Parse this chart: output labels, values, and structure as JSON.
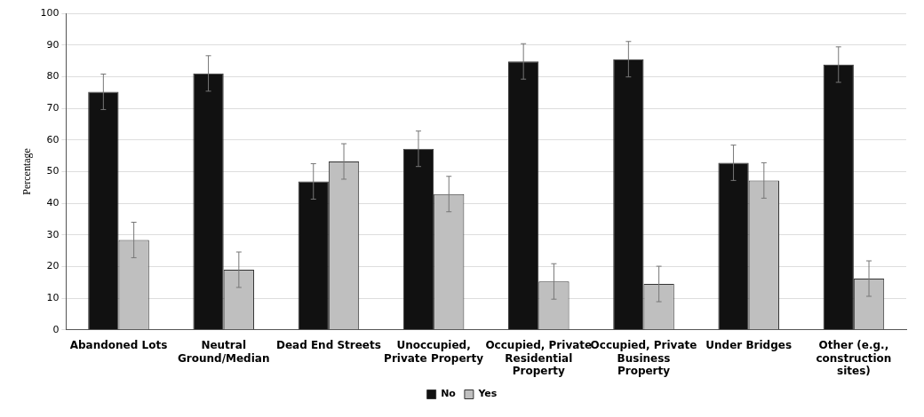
{
  "chart_data": {
    "type": "bar",
    "ylabel": "Percentage",
    "categories": [
      "Abandoned Lots",
      "Neutral Ground/Median",
      "Dead End Streets",
      "Unoccupied, Private Property",
      "Occupied, Private Residential Property",
      "Occupied, Private Business Property",
      "Under Bridges",
      "Other (e.g., construction sites)"
    ],
    "series": [
      {
        "name": "No",
        "color": "#111111",
        "values": [
          75.2,
          81.0,
          46.9,
          57.2,
          84.8,
          85.5,
          52.8,
          83.8
        ],
        "errors": [
          5.6,
          5.6,
          5.6,
          5.6,
          5.6,
          5.6,
          5.6,
          5.6
        ]
      },
      {
        "name": "Yes",
        "color": "#bfbfbf",
        "values": [
          28.4,
          19.0,
          53.2,
          42.9,
          15.3,
          14.5,
          47.2,
          16.2
        ],
        "errors": [
          5.6,
          5.6,
          5.6,
          5.6,
          5.6,
          5.6,
          5.6,
          5.6
        ]
      }
    ],
    "ylim": [
      0,
      100
    ],
    "yticks": [
      0,
      10,
      20,
      30,
      40,
      50,
      60,
      70,
      80,
      90,
      100
    ],
    "grid": "y",
    "legend": "bottom"
  }
}
